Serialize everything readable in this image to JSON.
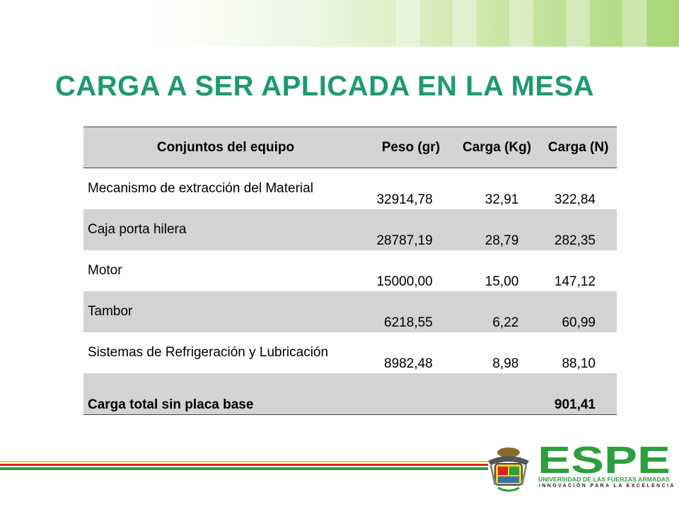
{
  "title": "CARGA A SER APLICADA EN LA MESA",
  "table": {
    "headers": [
      "Conjuntos del equipo",
      "Peso (gr)",
      "Carga (Kg)",
      "Carga (N)"
    ],
    "rows": [
      {
        "name": "Mecanismo de extracción del Material",
        "peso": "32914,78",
        "kg": "32,91",
        "n": "322,84"
      },
      {
        "name": "Caja porta hilera",
        "peso": "28787,19",
        "kg": "28,79",
        "n": "282,35"
      },
      {
        "name": "Motor",
        "peso": "15000,00",
        "kg": "15,00",
        "n": "147,12"
      },
      {
        "name": "Tambor",
        "peso": "6218,55",
        "kg": "6,22",
        "n": "60,99"
      },
      {
        "name": "Sistemas de Refrigeración y Lubricación",
        "peso": "8982,48",
        "kg": "8,98",
        "n": "88,10"
      }
    ],
    "total": {
      "label": "Carga total sin placa base",
      "value": "901,41"
    }
  },
  "logo": {
    "name": "ESPE",
    "subtitle": "UNIVERSIDAD DE LAS FUERZAS ARMADAS",
    "tagline": "INNOVACIÓN PARA LA EXCELENCIA"
  },
  "colors": {
    "title": "#1f9a6c",
    "header_bg": "#d3d3d3",
    "brand_green": "#2e9e3e",
    "brand_red": "#d6241f",
    "brand_yellow": "#f2d21b"
  }
}
